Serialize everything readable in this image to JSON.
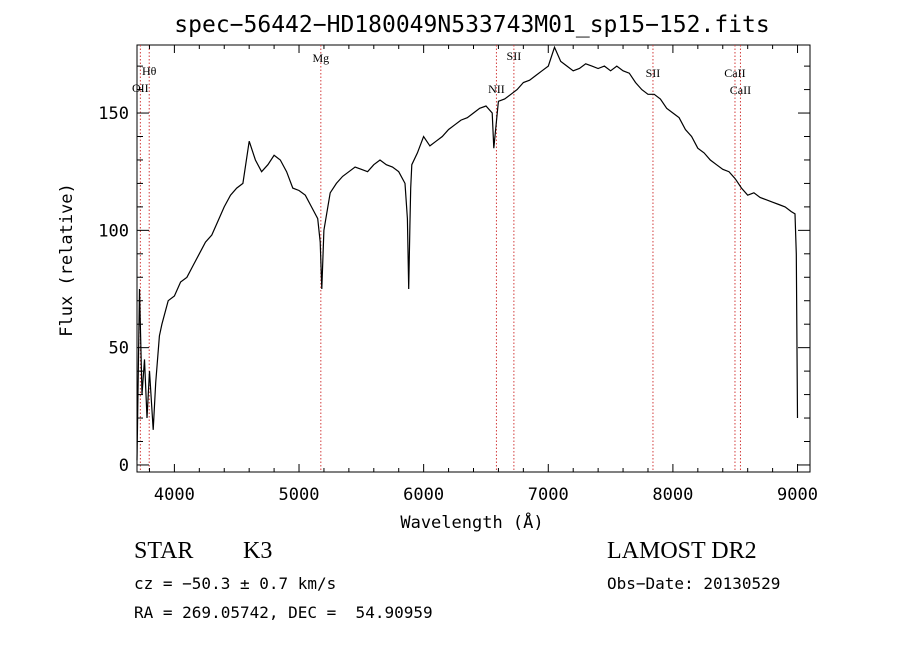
{
  "chart_data": {
    "type": "line",
    "title": "spec−56442−HD180049N533743M01_sp15−152.fits",
    "xlabel": "Wavelength (Å)",
    "ylabel": "Flux (relative)",
    "xlim": [
      3700,
      9100
    ],
    "ylim": [
      -3,
      179
    ],
    "xticks": [
      4000,
      5000,
      6000,
      7000,
      8000,
      9000
    ],
    "yticks": [
      0,
      50,
      100,
      150
    ],
    "grid": false,
    "series": [
      {
        "x": [
          3700,
          3720,
          3740,
          3760,
          3780,
          3800,
          3830,
          3850,
          3880,
          3900,
          3950,
          4000,
          4050,
          4100,
          4150,
          4200,
          4250,
          4300,
          4350,
          4400,
          4450,
          4500,
          4550,
          4600,
          4650,
          4700,
          4750,
          4800,
          4850,
          4900,
          4950,
          5000,
          5050,
          5100,
          5150,
          5170,
          5183,
          5200,
          5250,
          5300,
          5350,
          5400,
          5450,
          5500,
          5550,
          5600,
          5650,
          5700,
          5750,
          5800,
          5850,
          5870,
          5880,
          5890,
          5896,
          5905,
          5950,
          6000,
          6050,
          6100,
          6150,
          6200,
          6250,
          6300,
          6350,
          6400,
          6450,
          6500,
          6550,
          6563,
          6600,
          6650,
          6700,
          6750,
          6800,
          6850,
          6900,
          6950,
          7000,
          7050,
          7100,
          7150,
          7200,
          7250,
          7300,
          7350,
          7400,
          7450,
          7500,
          7550,
          7600,
          7650,
          7700,
          7750,
          7800,
          7850,
          7900,
          7950,
          8000,
          8050,
          8100,
          8150,
          8200,
          8250,
          8300,
          8350,
          8400,
          8450,
          8500,
          8550,
          8600,
          8650,
          8700,
          8750,
          8800,
          8850,
          8900,
          8950,
          8980,
          8990,
          9000
        ],
        "y": [
          2,
          75,
          30,
          45,
          20,
          40,
          15,
          35,
          55,
          60,
          70,
          72,
          78,
          80,
          85,
          90,
          95,
          98,
          104,
          110,
          115,
          118,
          120,
          138,
          130,
          125,
          128,
          132,
          130,
          125,
          118,
          117,
          115,
          110,
          105,
          95,
          75,
          100,
          116,
          120,
          123,
          125,
          127,
          126,
          125,
          128,
          130,
          128,
          127,
          125,
          120,
          105,
          75,
          102,
          118,
          128,
          133,
          140,
          136,
          138,
          140,
          143,
          145,
          147,
          148,
          150,
          152,
          153,
          150,
          135,
          155,
          156,
          158,
          160,
          163,
          164,
          166,
          168,
          170,
          178,
          172,
          170,
          168,
          169,
          171,
          170,
          169,
          170,
          168,
          170,
          168,
          167,
          163,
          160,
          158,
          158,
          156,
          152,
          150,
          148,
          143,
          140,
          135,
          133,
          130,
          128,
          126,
          125,
          122,
          118,
          115,
          116,
          114,
          113,
          112,
          111,
          110,
          108,
          107,
          90,
          20
        ]
      }
    ],
    "lines": [
      {
        "label": "Hθ",
        "x": 3798
      },
      {
        "label": "OII",
        "x": 3727
      },
      {
        "label": "Mg",
        "x": 5175
      },
      {
        "label": "NII",
        "x": 6584
      },
      {
        "label": "SII",
        "x": 6724
      },
      {
        "label": "SII",
        "x": 7840
      },
      {
        "label": "CaII",
        "x": 8498
      },
      {
        "label": "CaII",
        "x": 8542
      }
    ],
    "line_color": "#d23c3c"
  },
  "info": {
    "object_class": "STAR",
    "subclass": "K3",
    "survey": "LAMOST DR2",
    "cz": "cz = −50.3 ± 0.7 km/s",
    "obs_date": "Obs−Date: 20130529",
    "coords": "RA = 269.05742, DEC =  54.90959"
  }
}
